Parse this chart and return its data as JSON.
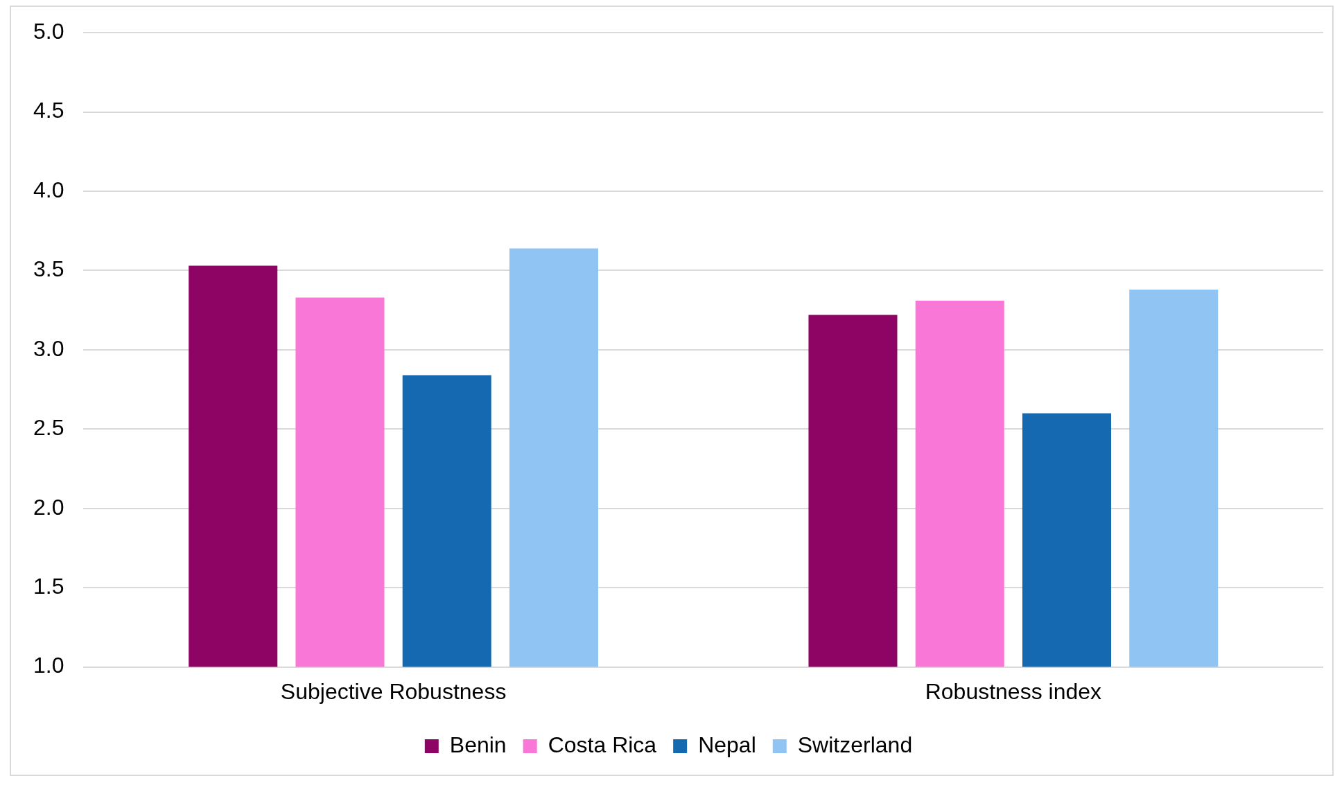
{
  "chart_data": {
    "type": "bar",
    "categories": [
      "Subjective Robustness",
      "Robustness index"
    ],
    "series": [
      {
        "name": "Benin",
        "color": "#8e0465",
        "values": [
          3.53,
          3.22
        ]
      },
      {
        "name": "Costa Rica",
        "color": "#f977d6",
        "values": [
          3.33,
          3.31
        ]
      },
      {
        "name": "Nepal",
        "color": "#1569b0",
        "values": [
          2.84,
          2.6
        ]
      },
      {
        "name": "Switzerland",
        "color": "#90c4f2",
        "values": [
          3.64,
          3.38
        ]
      }
    ],
    "ylim": [
      1,
      5
    ],
    "yticks": [
      {
        "value": 1,
        "label": "1.0"
      },
      {
        "value": 1.5,
        "label": "1.5"
      },
      {
        "value": 2,
        "label": "2.0"
      },
      {
        "value": 2.5,
        "label": "2.5"
      },
      {
        "value": 3,
        "label": "3.0"
      },
      {
        "value": 3.5,
        "label": "3.5"
      },
      {
        "value": 4,
        "label": "4.0"
      },
      {
        "value": 4.5,
        "label": "4.5"
      },
      {
        "value": 5,
        "label": "5.0"
      }
    ],
    "grid": "y",
    "legend": "bottom"
  }
}
